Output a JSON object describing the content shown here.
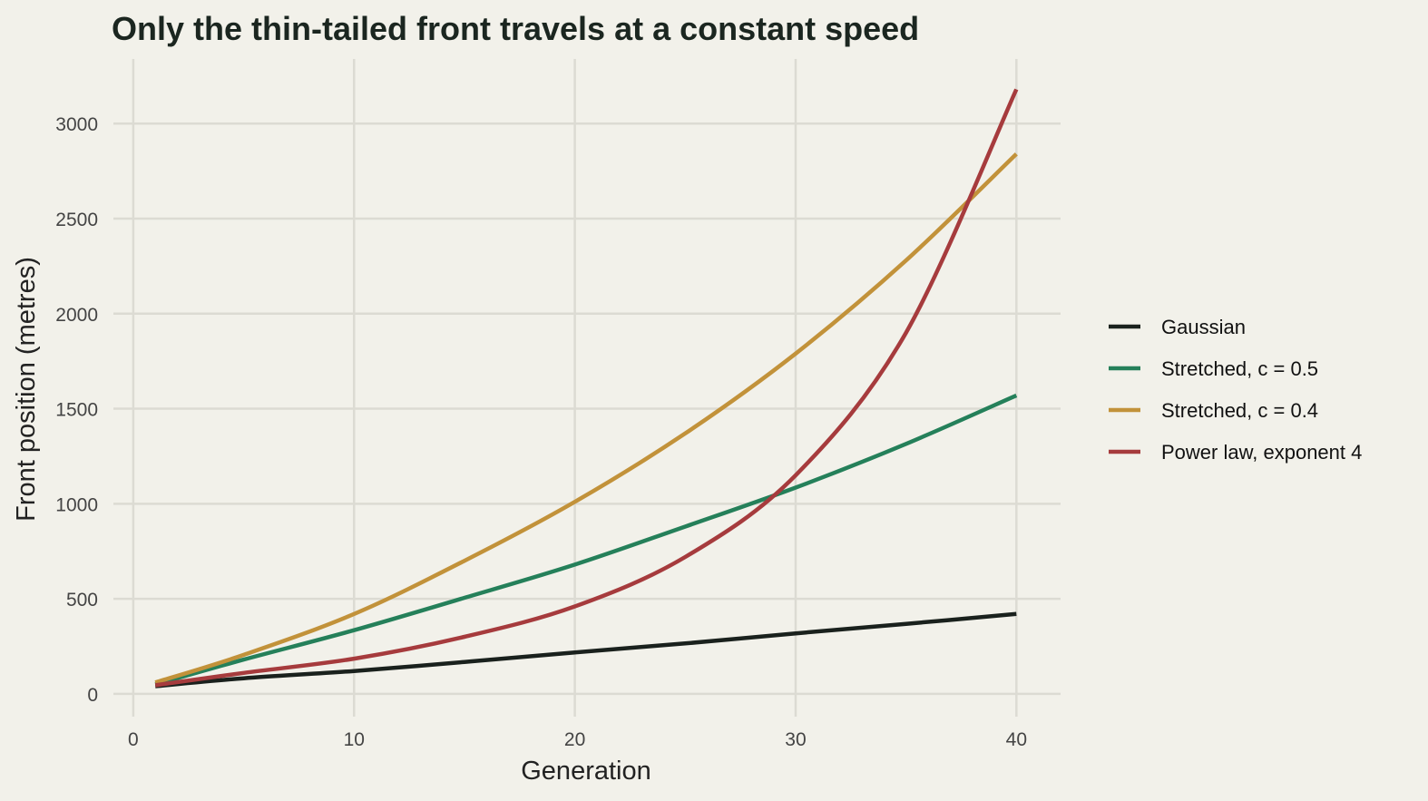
{
  "chart_data": {
    "type": "line",
    "title": "Only the thin-tailed front travels at a constant speed",
    "xlabel": "Generation",
    "ylabel": "Front position (metres)",
    "xlim": [
      -0.9,
      42
    ],
    "ylim": [
      -120,
      3340
    ],
    "xticks": [
      0,
      10,
      20,
      30,
      40
    ],
    "yticks": [
      0,
      500,
      1000,
      1500,
      2000,
      2500,
      3000
    ],
    "xtick_labels": [
      "0",
      "10",
      "20",
      "30",
      "40"
    ],
    "ytick_labels": [
      "0",
      "500",
      "1000",
      "1500",
      "2000",
      "2500",
      "3000"
    ],
    "grid": true,
    "legend_position": "right",
    "x": [
      1,
      5,
      10,
      15,
      20,
      25,
      30,
      35,
      40
    ],
    "series": [
      {
        "name": "Gaussian",
        "color": "#1a211d",
        "values": [
          40,
          82,
          120,
          168,
          218,
          265,
          318,
          368,
          420
        ]
      },
      {
        "name": "Stretched, c = 0.5",
        "color": "#25805a",
        "values": [
          50,
          180,
          335,
          505,
          680,
          880,
          1085,
          1315,
          1570
        ]
      },
      {
        "name": "Stretched, c = 0.4",
        "color": "#c2923a",
        "values": [
          60,
          205,
          420,
          700,
          1010,
          1370,
          1790,
          2280,
          2840
        ]
      },
      {
        "name": "Power law, exponent 4",
        "color": "#a63b3d",
        "values": [
          45,
          110,
          185,
          300,
          460,
          720,
          1150,
          1900,
          3180
        ]
      }
    ]
  }
}
